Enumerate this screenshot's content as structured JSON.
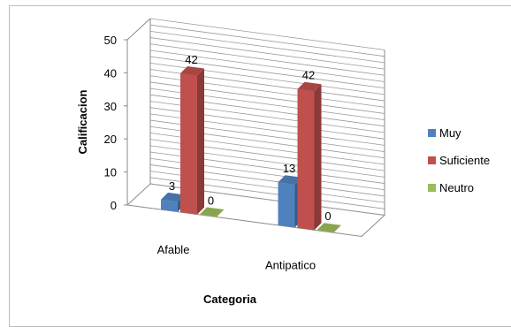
{
  "chart_data": {
    "type": "bar",
    "title": "",
    "xlabel": "Categoria",
    "ylabel": "Calificacion",
    "ylim": [
      0,
      50
    ],
    "yticks": [
      0,
      10,
      20,
      30,
      40,
      50
    ],
    "categories": [
      "Afable",
      "Antipatico"
    ],
    "series": [
      {
        "name": "Muy",
        "values": [
          3,
          13
        ],
        "color": "#4f81bd"
      },
      {
        "name": "Suficiente",
        "values": [
          42,
          42
        ],
        "color": "#c0504d"
      },
      {
        "name": "Neutro",
        "values": [
          0,
          0
        ],
        "color": "#9bbb59"
      }
    ],
    "data_labels": true,
    "grid": true,
    "legend": "right",
    "projection": "3d"
  }
}
